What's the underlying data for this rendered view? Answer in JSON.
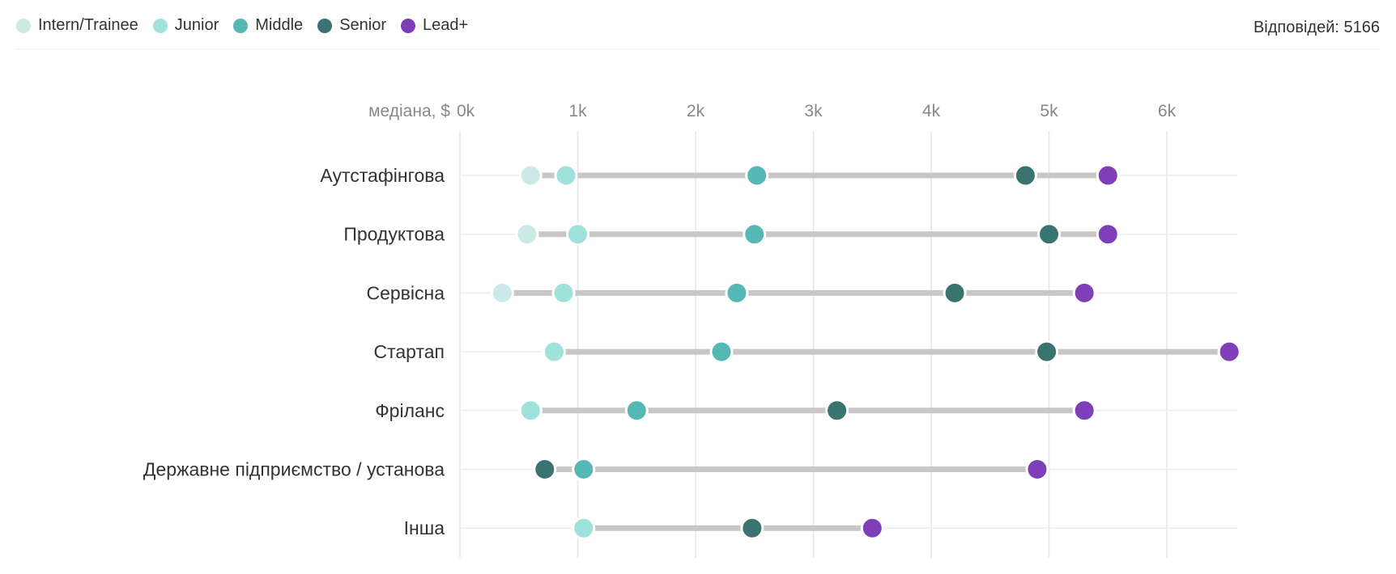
{
  "legend": [
    {
      "label": "Intern/Trainee",
      "color": "#cde9e7"
    },
    {
      "label": "Junior",
      "color": "#9fe2dc"
    },
    {
      "label": "Middle",
      "color": "#56b8b5"
    },
    {
      "label": "Senior",
      "color": "#3a7471"
    },
    {
      "label": "Lead+",
      "color": "#7e3fb8"
    }
  ],
  "responses_label": "Відповідей: 5166",
  "chart_data": {
    "type": "dot-range",
    "x_axis_title": "медіана, $",
    "x_ticks": [
      "0k",
      "1k",
      "2k",
      "3k",
      "4k",
      "5k",
      "6k"
    ],
    "x_tick_values": [
      0,
      1000,
      2000,
      3000,
      4000,
      5000,
      6000
    ],
    "xlim": [
      0,
      6600
    ],
    "grid": true,
    "legend_position": "top-left",
    "categories": [
      "Аутстафінгова",
      "Продуктова",
      "Сервісна",
      "Стартап",
      "Фріланс",
      "Державне підприємство / установа",
      "Інша"
    ],
    "series": [
      {
        "name": "Intern/Trainee",
        "color": "#cde9e7",
        "values": [
          600,
          570,
          360,
          null,
          600,
          null,
          null
        ]
      },
      {
        "name": "Junior",
        "color": "#9fe2dc",
        "values": [
          900,
          1000,
          880,
          800,
          600,
          null,
          1050
        ]
      },
      {
        "name": "Middle",
        "color": "#56b8b5",
        "values": [
          2520,
          2500,
          2350,
          2220,
          1500,
          1050,
          null
        ]
      },
      {
        "name": "Senior",
        "color": "#3a7471",
        "values": [
          4800,
          5000,
          4200,
          4980,
          3200,
          720,
          2480
        ]
      },
      {
        "name": "Lead+",
        "color": "#7e3fb8",
        "values": [
          5500,
          5500,
          5300,
          6530,
          5300,
          4900,
          3500
        ]
      }
    ]
  }
}
